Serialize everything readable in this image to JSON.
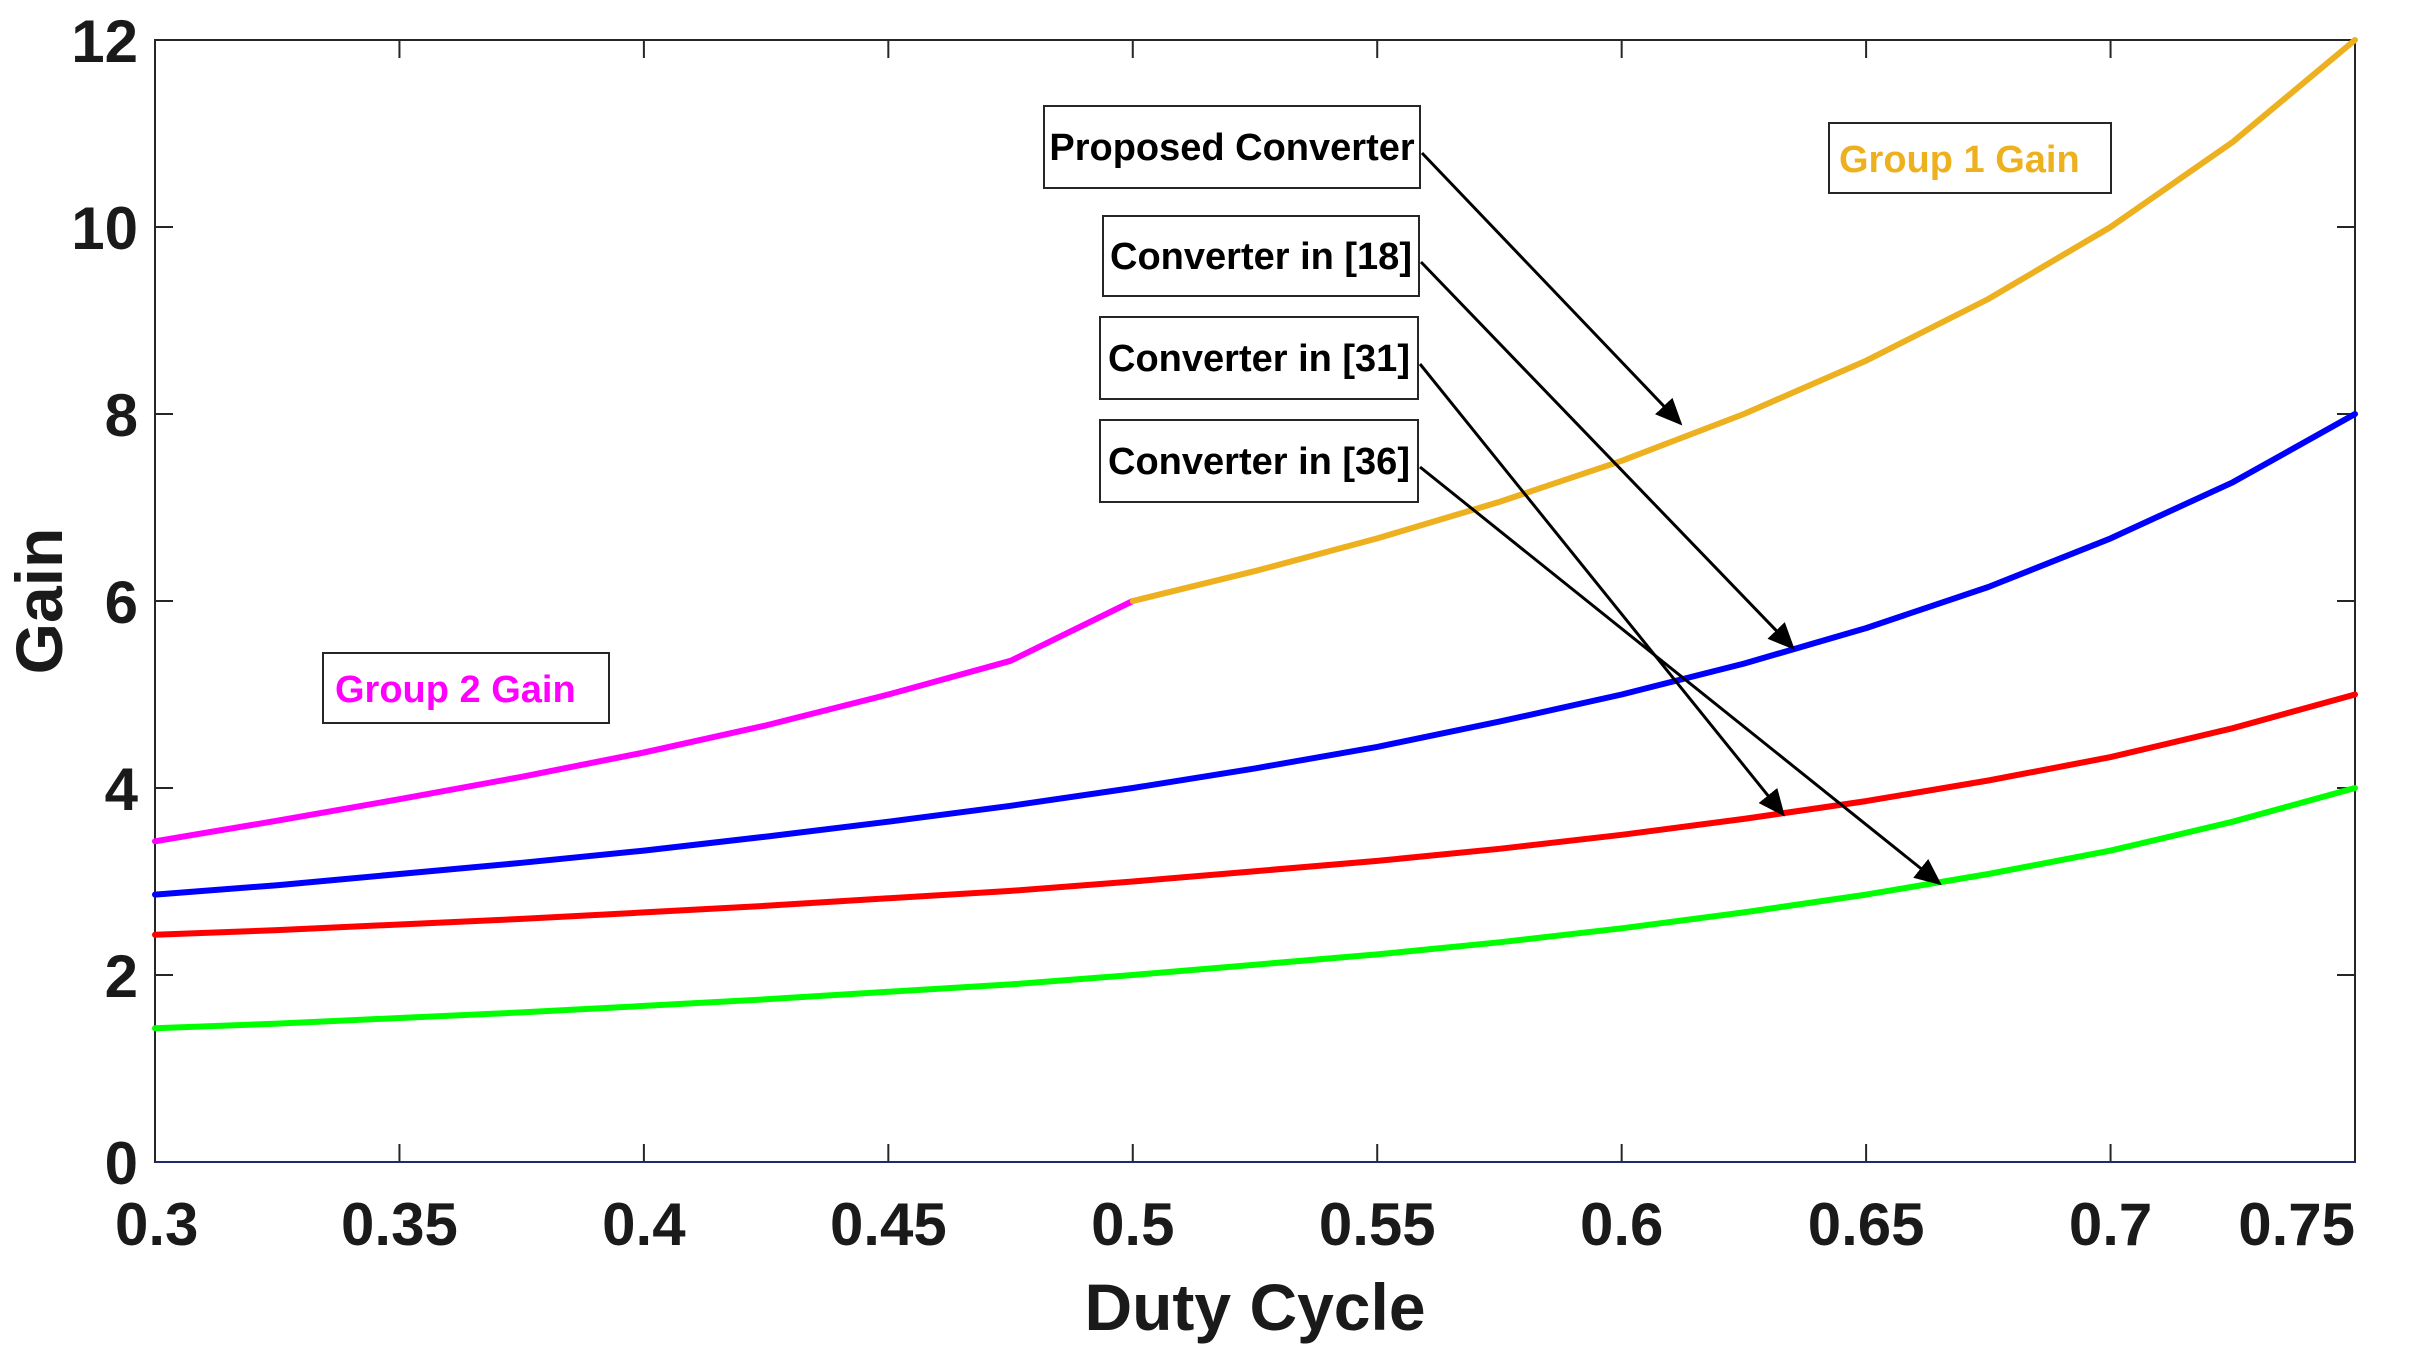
{
  "chart_data": {
    "type": "line",
    "title": "",
    "xlabel": "Duty Cycle",
    "ylabel": "Gain",
    "xlim": [
      0.3,
      0.75
    ],
    "ylim": [
      0,
      12
    ],
    "xticks": [
      0.3,
      0.35,
      0.4,
      0.45,
      0.5,
      0.55,
      0.6,
      0.65,
      0.7,
      0.75
    ],
    "xtick_labels": [
      "0.3",
      "0.35",
      "0.4",
      "0.45",
      "0.5",
      "0.55",
      "0.6",
      "0.65",
      "0.7",
      "0.75"
    ],
    "yticks": [
      0,
      2,
      4,
      6,
      8,
      10,
      12
    ],
    "ytick_labels": [
      "0",
      "2",
      "4",
      "6",
      "8",
      "10",
      "12"
    ],
    "grid": false,
    "series": [
      {
        "name": "Proposed Converter (Group 2 Gain)",
        "color": "#ff00ff",
        "x": [
          0.3,
          0.325,
          0.35,
          0.375,
          0.4,
          0.425,
          0.45,
          0.475,
          0.5
        ],
        "y": [
          3.43,
          3.65,
          3.88,
          4.12,
          4.38,
          4.67,
          5.0,
          5.36,
          6.0
        ]
      },
      {
        "name": "Proposed Converter (Group 1 Gain)",
        "color": "#edb120",
        "x": [
          0.5,
          0.525,
          0.55,
          0.575,
          0.6,
          0.625,
          0.65,
          0.675,
          0.7,
          0.725,
          0.75
        ],
        "y": [
          6.0,
          6.32,
          6.67,
          7.06,
          7.5,
          8.0,
          8.57,
          9.23,
          10.0,
          10.91,
          12.0
        ]
      },
      {
        "name": "Converter in [18]",
        "color": "#0000ff",
        "x": [
          0.3,
          0.325,
          0.35,
          0.375,
          0.4,
          0.425,
          0.45,
          0.475,
          0.5,
          0.525,
          0.55,
          0.575,
          0.6,
          0.625,
          0.65,
          0.675,
          0.7,
          0.725,
          0.75
        ],
        "y": [
          2.86,
          2.96,
          3.08,
          3.2,
          3.33,
          3.48,
          3.64,
          3.81,
          4.0,
          4.21,
          4.44,
          4.71,
          5.0,
          5.33,
          5.71,
          6.15,
          6.67,
          7.27,
          8.0
        ]
      },
      {
        "name": "Converter in [31]",
        "color": "#ff0000",
        "x": [
          0.3,
          0.325,
          0.35,
          0.375,
          0.4,
          0.425,
          0.45,
          0.475,
          0.5,
          0.525,
          0.55,
          0.575,
          0.6,
          0.625,
          0.65,
          0.675,
          0.7,
          0.725,
          0.75
        ],
        "y": [
          2.43,
          2.48,
          2.54,
          2.6,
          2.67,
          2.74,
          2.82,
          2.9,
          3.0,
          3.11,
          3.22,
          3.35,
          3.5,
          3.67,
          3.86,
          4.08,
          4.33,
          4.64,
          5.0
        ]
      },
      {
        "name": "Converter in [36]",
        "color": "#00ff00",
        "x": [
          0.3,
          0.325,
          0.35,
          0.375,
          0.4,
          0.425,
          0.45,
          0.475,
          0.5,
          0.525,
          0.55,
          0.575,
          0.6,
          0.625,
          0.65,
          0.675,
          0.7,
          0.725,
          0.75
        ],
        "y": [
          1.43,
          1.48,
          1.54,
          1.6,
          1.67,
          1.74,
          1.82,
          1.9,
          2.0,
          2.11,
          2.22,
          2.35,
          2.5,
          2.67,
          2.86,
          3.08,
          3.33,
          3.64,
          4.0
        ]
      }
    ],
    "annotations": [
      {
        "text": "Group 1 Gain",
        "color": "#edb120",
        "placement": "top-right"
      },
      {
        "text": "Group 2 Gain",
        "color": "#ff00ff",
        "placement": "left"
      },
      {
        "text": "Proposed Converter",
        "color": "#000000",
        "arrow_to": {
          "x": 0.612,
          "y": 7.9
        }
      },
      {
        "text": "Converter in [18]",
        "color": "#000000",
        "arrow_to": {
          "x": 0.635,
          "y": 5.5
        }
      },
      {
        "text": "Converter in [31]",
        "color": "#000000",
        "arrow_to": {
          "x": 0.633,
          "y": 3.72
        }
      },
      {
        "text": "Converter in [36]",
        "color": "#000000",
        "arrow_to": {
          "x": 0.665,
          "y": 2.98
        }
      }
    ]
  }
}
